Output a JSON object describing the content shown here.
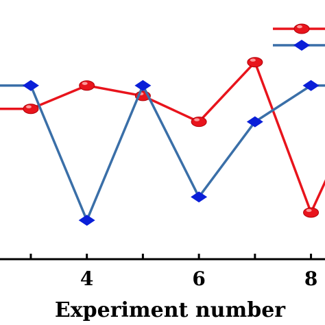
{
  "chart_data": {
    "type": "line",
    "title": "",
    "xlabel": "Experiment number",
    "ylabel": "",
    "x_ticks": [
      {
        "value": 3,
        "label": ""
      },
      {
        "value": 4,
        "label": "4"
      },
      {
        "value": 5,
        "label": ""
      },
      {
        "value": 6,
        "label": "6"
      },
      {
        "value": 7,
        "label": ""
      },
      {
        "value": 8,
        "label": "8"
      }
    ],
    "xlim": [
      2.45,
      8.25
    ],
    "ylim": [
      0,
      1
    ],
    "grid": false,
    "legend_position": "top-right",
    "series": [
      {
        "color": "#e8141c",
        "marker": "circle",
        "x": [
          2,
          3,
          4,
          5,
          6,
          7,
          8,
          9
        ],
        "y": [
          0.58,
          0.58,
          0.67,
          0.63,
          0.53,
          0.76,
          0.18,
          0.65
        ]
      },
      {
        "color": "#3a6fa8",
        "marker": "diamond",
        "marker_color": "#0a1fd8",
        "x": [
          2,
          3,
          4,
          5,
          6,
          7,
          8,
          9
        ],
        "y": [
          0.67,
          0.67,
          0.15,
          0.67,
          0.24,
          0.53,
          0.67,
          0.67
        ]
      }
    ]
  }
}
